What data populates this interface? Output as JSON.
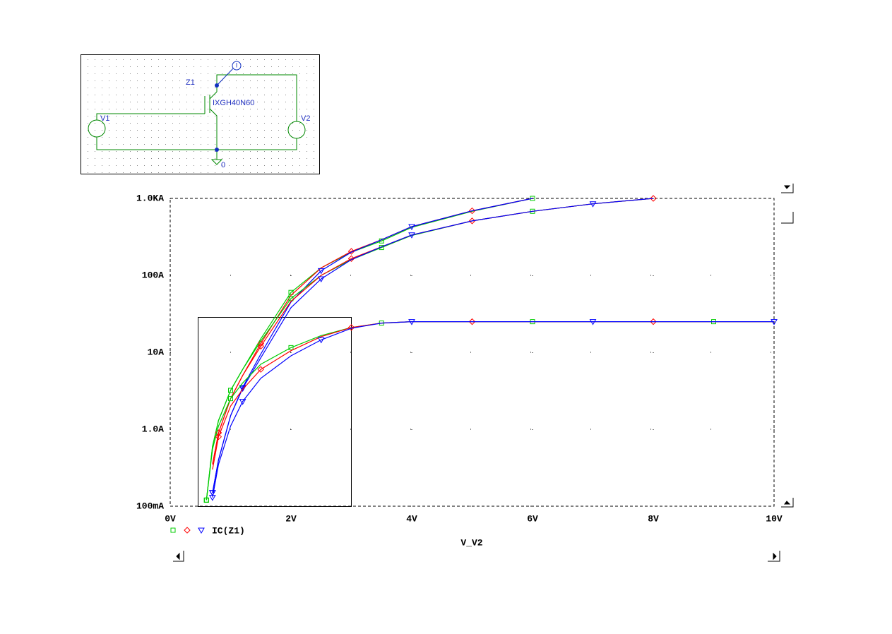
{
  "schematic": {
    "part": "Z1",
    "model": "IXGH40N60",
    "sources": [
      "V1",
      "V2"
    ],
    "ground": "0",
    "probe": "I"
  },
  "chart_data": {
    "type": "line",
    "xlabel": "V_V2",
    "legend": [
      "IC(Z1)"
    ],
    "yscale": "log",
    "grid": true,
    "xlim": [
      0,
      10
    ],
    "ylim": [
      0.1,
      1000
    ],
    "xticks": [
      {
        "value": 0,
        "label": "0V"
      },
      {
        "value": 2,
        "label": "2V"
      },
      {
        "value": 4,
        "label": "4V"
      },
      {
        "value": 6,
        "label": "6V"
      },
      {
        "value": 8,
        "label": "8V"
      },
      {
        "value": 10,
        "label": "10V"
      }
    ],
    "yticks": [
      {
        "value": 0.1,
        "label": "100mA"
      },
      {
        "value": 1,
        "label": "1.0A"
      },
      {
        "value": 10,
        "label": "10A"
      },
      {
        "value": 100,
        "label": "100A"
      },
      {
        "value": 1000,
        "label": "1.0KA"
      }
    ],
    "x": [
      0.6,
      0.7,
      0.8,
      1,
      1.2,
      1.5,
      2,
      2.5,
      3,
      3.5,
      4,
      5,
      6,
      7,
      8,
      9,
      10
    ],
    "series": [
      {
        "color": "#00cc00",
        "marker": "square",
        "values": [
          0.12,
          0.6,
          1.3,
          3.2,
          6,
          15,
          60,
          125,
          200,
          280,
          420,
          680,
          1000,
          null,
          null,
          null,
          null
        ]
      },
      {
        "color": "#ff0000",
        "marker": "diamond",
        "values": [
          null,
          0.35,
          0.9,
          2.5,
          5,
          13,
          55,
          125,
          205,
          290,
          430,
          690,
          1000,
          null,
          null,
          null,
          null
        ]
      },
      {
        "color": "#0000ff",
        "marker": "triangle",
        "values": [
          null,
          0.15,
          0.4,
          1.5,
          3.5,
          9.5,
          45,
          115,
          200,
          290,
          430,
          690,
          1000,
          null,
          null,
          null,
          null
        ]
      },
      {
        "color": "#00cc00",
        "marker": "square",
        "values": [
          0.12,
          0.6,
          1.3,
          3.2,
          6,
          14,
          50,
          100,
          160,
          230,
          330,
          510,
          680,
          850,
          1000,
          null,
          null
        ]
      },
      {
        "color": "#ff0000",
        "marker": "diamond",
        "values": [
          null,
          0.35,
          0.9,
          2.5,
          5,
          12,
          46,
          100,
          165,
          235,
          335,
          510,
          680,
          850,
          1000,
          null,
          null
        ]
      },
      {
        "color": "#0000ff",
        "marker": "triangle",
        "values": [
          null,
          0.15,
          0.4,
          1.5,
          3.4,
          8.5,
          38,
          90,
          160,
          235,
          335,
          510,
          680,
          850,
          1000,
          null,
          null
        ]
      },
      {
        "color": "#00cc00",
        "marker": "square",
        "values": [
          0.12,
          0.55,
          1.1,
          2.5,
          4,
          7,
          11.5,
          16.5,
          21,
          24,
          25,
          25,
          25,
          25,
          25,
          25,
          25
        ]
      },
      {
        "color": "#ff0000",
        "marker": "diamond",
        "values": [
          null,
          0.3,
          0.8,
          2,
          3.3,
          6,
          10.5,
          16,
          21,
          24,
          25,
          25,
          25,
          25,
          25,
          25,
          25
        ]
      },
      {
        "color": "#0000ff",
        "marker": "triangle",
        "values": [
          null,
          0.13,
          0.35,
          1.1,
          2.3,
          4.6,
          9,
          14.5,
          20.5,
          24,
          25,
          25,
          25,
          25,
          25,
          25,
          25
        ]
      }
    ]
  }
}
